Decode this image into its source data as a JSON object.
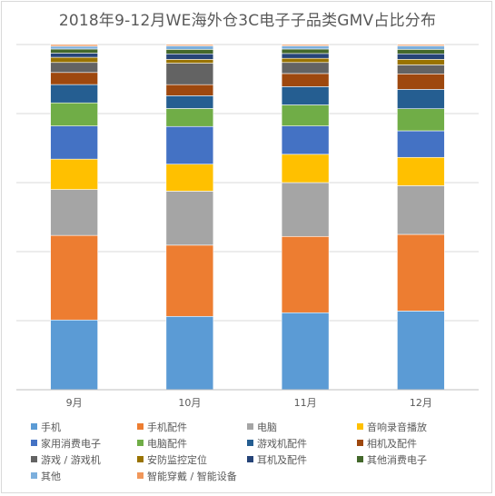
{
  "chart_data": {
    "type": "bar",
    "stacked": true,
    "percent": true,
    "title": "2018年9-12月WE海外仓3C电子子品类GMV占比分布",
    "categories": [
      "9月",
      "10月",
      "11月",
      "12月"
    ],
    "ylim": [
      0,
      100
    ],
    "grid": true,
    "legend_position": "bottom",
    "series": [
      {
        "name": "手机",
        "color": "#5b9bd5",
        "values": [
          20.2,
          21.2,
          22.3,
          22.8
        ]
      },
      {
        "name": "手机配件",
        "color": "#ed7d31",
        "values": [
          24.5,
          20.6,
          22.1,
          22.2
        ]
      },
      {
        "name": "电脑",
        "color": "#a5a5a5",
        "values": [
          13.3,
          15.6,
          15.6,
          14.1
        ]
      },
      {
        "name": "音响录音播放",
        "color": "#ffc000",
        "values": [
          8.8,
          7.8,
          8.2,
          8.2
        ]
      },
      {
        "name": "家用消费电子",
        "color": "#4472c4",
        "values": [
          9.6,
          10.9,
          8.2,
          7.7
        ]
      },
      {
        "name": "电脑配件",
        "color": "#70ad47",
        "values": [
          6.7,
          5.2,
          6.1,
          6.4
        ]
      },
      {
        "name": "游戏机配件",
        "color": "#255e91",
        "values": [
          5.3,
          3.7,
          5.3,
          5.6
        ]
      },
      {
        "name": "相机及配件",
        "color": "#9e480e",
        "values": [
          3.5,
          3.2,
          3.8,
          4.5
        ]
      },
      {
        "name": "游戏 / 游戏机",
        "color": "#636363",
        "values": [
          2.9,
          6.2,
          3.2,
          2.6
        ]
      },
      {
        "name": "安防监控定位",
        "color": "#997300",
        "values": [
          1.5,
          1.1,
          1.2,
          1.6
        ]
      },
      {
        "name": "耳机及配件",
        "color": "#264478",
        "values": [
          1.2,
          1.6,
          1.4,
          1.6
        ]
      },
      {
        "name": "其他消费电子",
        "color": "#43682b",
        "values": [
          1.2,
          1.3,
          1.3,
          1.3
        ]
      },
      {
        "name": "其他",
        "color": "#7cafdd",
        "values": [
          0.8,
          1.0,
          0.9,
          1.0
        ]
      },
      {
        "name": "智能穿戴 / 智能设备",
        "color": "#f1975a",
        "values": [
          0.5,
          0.4,
          0.4,
          0.4
        ]
      }
    ]
  }
}
